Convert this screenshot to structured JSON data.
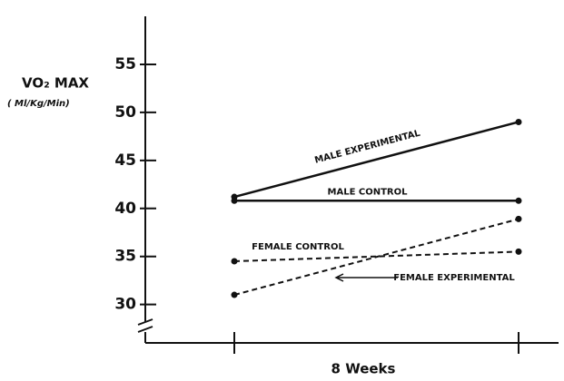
{
  "chart_data": {
    "type": "line",
    "y_label": "VO₂ MAX",
    "y_label_units": "( Ml/Kg/Min)",
    "x_label": "8 Weeks",
    "categories": [
      null,
      null
    ],
    "series": [
      {
        "name": "MALE EXPERIMENTAL",
        "color": "#111111",
        "dashed": false,
        "values": [
          41.2,
          49
        ]
      },
      {
        "name": "MALE CONTROL",
        "color": "#111111",
        "dashed": false,
        "values": [
          40.8,
          40.8
        ]
      },
      {
        "name": "FEMALE CONTROL",
        "color": "#111111",
        "dashed": true,
        "values": [
          34.5,
          35.5
        ]
      },
      {
        "name": "FEMALE EXPERIMENTAL",
        "color": "#111111",
        "dashed": true,
        "values": [
          31,
          38.9
        ]
      }
    ],
    "ylim": [
      26,
      60
    ],
    "yticks": [
      30,
      35,
      40,
      45,
      50,
      55
    ]
  }
}
